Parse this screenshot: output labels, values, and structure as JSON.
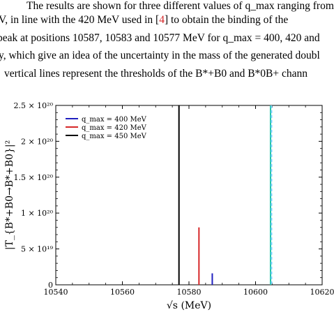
{
  "paper_text": {
    "line1": "The results are shown for three different values of q_max ranging from",
    "line2_pre": "V, in line with the 420 MeV used in [",
    "line2_ref": "4",
    "line2_post": "] to obtain the binding of the",
    "line3": "peak at positions 10587, 10583 and 10577 MeV for q_max = 400, 420 and",
    "line4": "y, which give an idea of the uncertainty in the mass of the generated doubl",
    "line5": "vertical lines represent the thresholds of the B*+B0 and B*0B+ chann"
  },
  "chart_data": {
    "type": "line",
    "xlabel": "√s (MeV)",
    "ylabel": "|T_{B*+B0→B*+B0}|²",
    "xlim": [
      10540,
      10620
    ],
    "ylim": [
      0,
      2.5e+20
    ],
    "x_ticks": [
      10540,
      10560,
      10580,
      10600,
      10620
    ],
    "x_tick_labels": [
      "10540",
      "10560",
      "10580",
      "10600",
      "10620"
    ],
    "y_ticks": [
      0,
      5e+19,
      1e+20,
      1.5e+20,
      2e+20,
      2.5e+20
    ],
    "y_tick_labels": [
      "0",
      "5 × 10¹⁹",
      "1 × 10²⁰",
      "1.5 × 10²⁰",
      "2 × 10²⁰",
      "2.5 × 10²⁰"
    ],
    "legend_position": "top-left",
    "series": [
      {
        "name": "q_max = 400 MeV",
        "color": "#1f1fbf",
        "peak_x": 10587,
        "peak_y": 1.6e+19
      },
      {
        "name": "q_max = 420 MeV",
        "color": "#d62728",
        "peak_x": 10583,
        "peak_y": 8e+19
      },
      {
        "name": "q_max = 450 MeV",
        "color": "#000000",
        "peak_x": 10577,
        "peak_y": 2.5e+20
      }
    ],
    "thresholds": [
      {
        "x": 10604.5,
        "color": "#22c3a6",
        "style": "solid"
      },
      {
        "x": 10604.8,
        "color": "#7fd3ff",
        "style": "dashed"
      }
    ]
  }
}
